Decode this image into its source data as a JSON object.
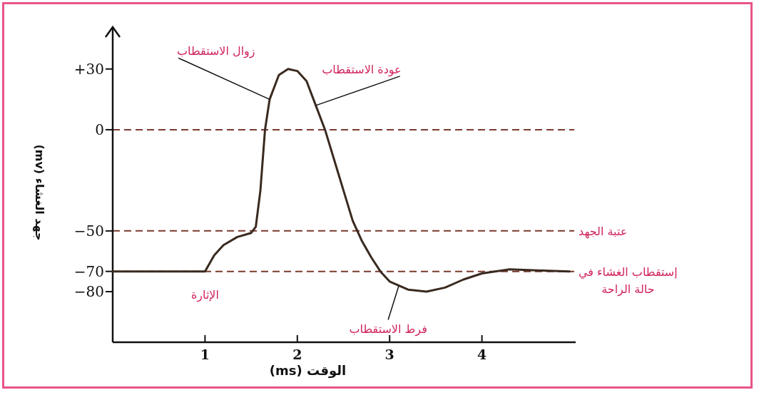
{
  "chart_data": {
    "type": "line",
    "xlabel": "الوقت (ms)",
    "ylabel": "جهد الغشاء (mv)",
    "xlim": [
      0,
      5
    ],
    "ylim": [
      -105,
      50
    ],
    "xticks": [
      1,
      2,
      3,
      4
    ],
    "yticks": [
      {
        "value": 30,
        "label": "+30"
      },
      0,
      {
        "value": -50,
        "label": "−50"
      },
      {
        "value": -70,
        "label": "−70"
      },
      {
        "value": -80,
        "label": "−80"
      }
    ],
    "x": [
      0,
      1.0,
      1.1,
      1.2,
      1.35,
      1.5,
      1.55,
      1.6,
      1.65,
      1.7,
      1.8,
      1.9,
      2.0,
      2.1,
      2.2,
      2.3,
      2.4,
      2.5,
      2.6,
      2.7,
      2.8,
      2.9,
      3.0,
      3.2,
      3.4,
      3.6,
      3.8,
      4.0,
      4.3,
      4.6,
      4.95
    ],
    "series": [
      {
        "color": "#3a2a20",
        "values": [
          -70,
          -70,
          -62,
          -57,
          -53,
          -51,
          -48,
          -30,
          0,
          15,
          27,
          30,
          29,
          24,
          12,
          0,
          -15,
          -30,
          -45,
          -55,
          -63,
          -70,
          -75,
          -79,
          -80,
          -78,
          -74,
          -71,
          -69,
          -69.5,
          -70
        ]
      }
    ],
    "ref_lines": [
      {
        "axis": "y",
        "value": 0,
        "color": "#7a3b2e",
        "line_style": "dashed"
      },
      {
        "axis": "y",
        "value": -50,
        "label": "عتبة الجهد",
        "color": "#7a3b2e",
        "line_style": "dashed"
      },
      {
        "axis": "y",
        "value": -70,
        "label": "إستقطاب الغشاء في حالة الراحة",
        "color": "#7a3b2e",
        "line_style": "dashed"
      }
    ],
    "annotations": [
      {
        "text": "زوال الاستقطاب",
        "x": 1.7,
        "y": 15
      },
      {
        "text": "عودة الاستقطاب",
        "x": 2.2,
        "y": 12
      },
      {
        "text": "الإثارة",
        "x": 1.0,
        "y": -70
      },
      {
        "text": "فرط الاستقطاب",
        "x": 3.1,
        "y": -77
      }
    ]
  }
}
